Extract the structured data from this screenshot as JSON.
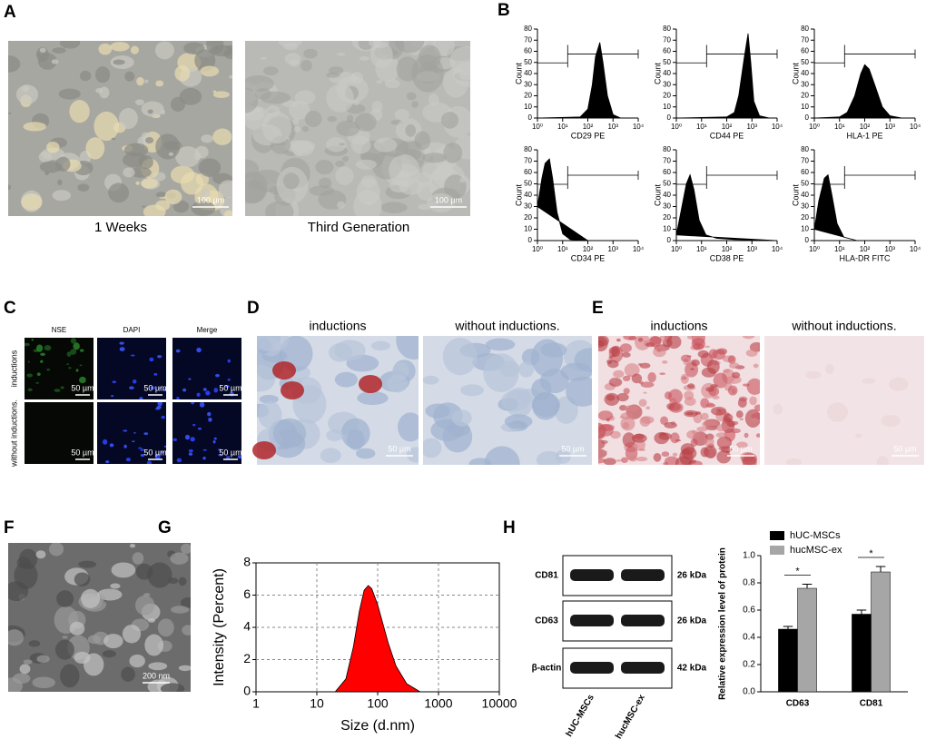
{
  "panel_labels": [
    "A",
    "B",
    "C",
    "D",
    "E",
    "F",
    "G",
    "H"
  ],
  "panel_a": {
    "captions": [
      "1 Weeks",
      "Third Generation"
    ],
    "scale_bar": "100 µm"
  },
  "panel_c": {
    "columns": [
      "NSE",
      "DAPI",
      "Merge"
    ],
    "rows": [
      "inductions",
      "without inductions."
    ],
    "scale_bar": "50 µm"
  },
  "panel_d": {
    "columns": [
      "inductions",
      "without inductions."
    ],
    "scale_bar": "50 µm"
  },
  "panel_e": {
    "columns": [
      "inductions",
      "without inductions."
    ],
    "scale_bar": "50 µm"
  },
  "panel_f": {
    "scale_bar": "200 nm"
  },
  "panel_h_blot": {
    "bands": [
      "CD81",
      "CD63",
      "β-actin"
    ],
    "sizes": [
      "26 kDa",
      "26 kDa",
      "42 kDa"
    ],
    "lanes": [
      "hUC-MSCs",
      "hucMSC-ex"
    ]
  },
  "chart_data": [
    {
      "type": "area",
      "log_x": true,
      "x_label": "CD29 PE",
      "y_label": "Count",
      "color": "#000000",
      "x": [
        1,
        50,
        100,
        150,
        200,
        300,
        400,
        600,
        1000,
        2000
      ],
      "values": [
        0,
        1,
        8,
        30,
        55,
        68,
        50,
        20,
        3,
        0
      ],
      "xlim": [
        1,
        10000
      ],
      "ylim": [
        0,
        80
      ],
      "xticks": [
        {
          "value": 1,
          "label": "10⁰"
        },
        {
          "value": 10,
          "label": "10¹"
        },
        {
          "value": 100,
          "label": "10²"
        },
        {
          "value": 1000,
          "label": "10³"
        },
        {
          "value": 10000,
          "label": "10⁴"
        }
      ],
      "yticks": [
        0,
        10,
        20,
        30,
        40,
        50,
        60,
        70,
        80
      ]
    },
    {
      "type": "area",
      "log_x": true,
      "x_label": "CD44 PE",
      "y_label": "Count",
      "color": "#000000",
      "x": [
        1,
        100,
        200,
        300,
        500,
        700,
        900,
        1200,
        2000,
        5000
      ],
      "values": [
        0,
        1,
        5,
        20,
        55,
        76,
        50,
        15,
        2,
        0
      ],
      "xlim": [
        1,
        10000
      ],
      "ylim": [
        0,
        80
      ],
      "xticks": [
        {
          "value": 1,
          "label": "10⁰"
        },
        {
          "value": 10,
          "label": "10¹"
        },
        {
          "value": 100,
          "label": "10²"
        },
        {
          "value": 1000,
          "label": "10³"
        },
        {
          "value": 10000,
          "label": "10⁴"
        }
      ],
      "yticks": [
        0,
        10,
        20,
        30,
        40,
        50,
        60,
        70,
        80
      ]
    },
    {
      "type": "area",
      "log_x": true,
      "x_label": "HLA-1 PE",
      "y_label": "Count",
      "color": "#000000",
      "x": [
        1,
        10,
        20,
        40,
        70,
        100,
        150,
        250,
        500,
        1000,
        3000
      ],
      "values": [
        0,
        1,
        5,
        20,
        40,
        48,
        44,
        30,
        10,
        2,
        0
      ],
      "xlim": [
        1,
        10000
      ],
      "ylim": [
        0,
        80
      ],
      "xticks": [
        {
          "value": 1,
          "label": "10⁰"
        },
        {
          "value": 10,
          "label": "10¹"
        },
        {
          "value": 100,
          "label": "10²"
        },
        {
          "value": 1000,
          "label": "10³"
        },
        {
          "value": 10000,
          "label": "10⁴"
        }
      ],
      "yticks": [
        0,
        10,
        20,
        30,
        40,
        50,
        60,
        70,
        80
      ]
    },
    {
      "type": "area",
      "log_x": true,
      "x_label": "CD34 PE",
      "y_label": "Count",
      "color": "#000000",
      "x": [
        1,
        1.5,
        2,
        3,
        4,
        6,
        10,
        20,
        100
      ],
      "values": [
        30,
        55,
        68,
        72,
        55,
        25,
        6,
        1,
        0
      ],
      "xlim": [
        1,
        10000
      ],
      "ylim": [
        0,
        80
      ],
      "xticks": [
        {
          "value": 1,
          "label": "10⁰"
        },
        {
          "value": 10,
          "label": "10¹"
        },
        {
          "value": 100,
          "label": "10²"
        },
        {
          "value": 1000,
          "label": "10³"
        },
        {
          "value": 10000,
          "label": "10⁴"
        }
      ],
      "yticks": [
        0,
        10,
        20,
        30,
        40,
        50,
        60,
        70,
        80
      ]
    },
    {
      "type": "area",
      "log_x": true,
      "x_label": "CD38 PE",
      "y_label": "Count",
      "color": "#000000",
      "x": [
        1,
        1.5,
        2.5,
        3.5,
        5,
        8,
        15,
        40,
        200,
        10000
      ],
      "values": [
        5,
        25,
        50,
        58,
        45,
        18,
        5,
        2,
        1,
        0
      ],
      "xlim": [
        1,
        10000
      ],
      "ylim": [
        0,
        80
      ],
      "xticks": [
        {
          "value": 1,
          "label": "10⁰"
        },
        {
          "value": 10,
          "label": "10¹"
        },
        {
          "value": 100,
          "label": "10²"
        },
        {
          "value": 1000,
          "label": "10³"
        },
        {
          "value": 10000,
          "label": "10⁴"
        }
      ],
      "yticks": [
        0,
        10,
        20,
        30,
        40,
        50,
        60,
        70,
        80
      ]
    },
    {
      "type": "area",
      "log_x": true,
      "x_label": "HLA-DR FITC",
      "y_label": "Count",
      "color": "#000000",
      "x": [
        1,
        1.5,
        2.5,
        3.5,
        5,
        8,
        15,
        50
      ],
      "values": [
        10,
        35,
        55,
        58,
        40,
        15,
        3,
        0
      ],
      "xlim": [
        1,
        10000
      ],
      "ylim": [
        0,
        80
      ],
      "xticks": [
        {
          "value": 1,
          "label": "10⁰"
        },
        {
          "value": 10,
          "label": "10¹"
        },
        {
          "value": 100,
          "label": "10²"
        },
        {
          "value": 1000,
          "label": "10³"
        },
        {
          "value": 10000,
          "label": "10⁴"
        }
      ],
      "yticks": [
        0,
        10,
        20,
        30,
        40,
        50,
        60,
        70,
        80
      ]
    },
    {
      "type": "area",
      "log_x": true,
      "grid": true,
      "x_label": "Size (d.nm)",
      "y_label": "Intensity (Percent)",
      "color": "#ff0000",
      "x": [
        20,
        30,
        40,
        50,
        60,
        70,
        80,
        100,
        150,
        200,
        300,
        500
      ],
      "values": [
        0,
        0.8,
        2.8,
        5.0,
        6.3,
        6.6,
        6.4,
        5.4,
        3.0,
        1.6,
        0.5,
        0
      ],
      "xlim": [
        1,
        10000
      ],
      "ylim": [
        0,
        8
      ],
      "xticks": [
        1,
        10,
        100,
        1000,
        10000
      ],
      "yticks": [
        0,
        2,
        4,
        6,
        8
      ]
    },
    {
      "type": "bar",
      "y_label": "Relative expression level of protein",
      "categories": [
        "CD63",
        "CD81"
      ],
      "series": [
        {
          "name": "hUC-MSCs",
          "color": "#000000",
          "values": [
            0.46,
            0.57
          ],
          "errors": [
            0.02,
            0.03
          ]
        },
        {
          "name": "hucMSC-ex",
          "color": "#a6a6a6",
          "values": [
            0.76,
            0.88
          ],
          "errors": [
            0.03,
            0.04
          ]
        }
      ],
      "ylim": [
        0,
        1
      ],
      "yticks": [
        {
          "value": 0,
          "label": "0.0"
        },
        0.2,
        0.4,
        0.6,
        0.8,
        {
          "value": 1,
          "label": "1.0"
        }
      ],
      "annotations": [
        "*",
        "*"
      ]
    }
  ]
}
